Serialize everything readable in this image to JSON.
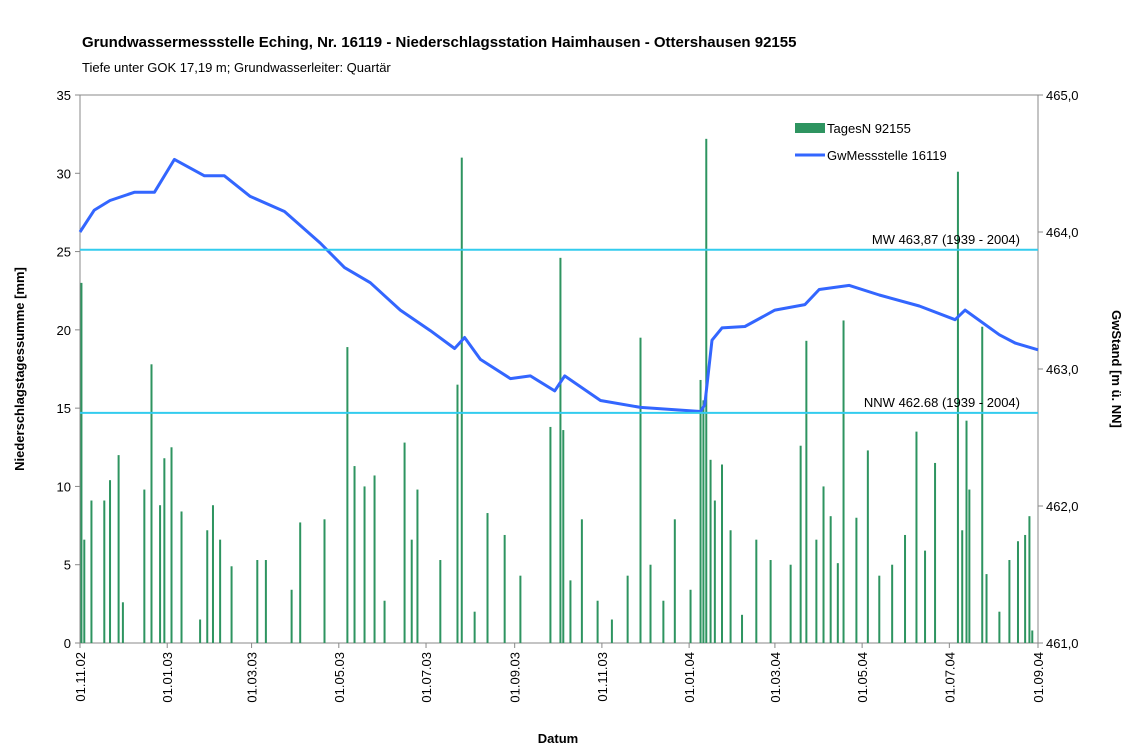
{
  "chart_data": {
    "type": "bar-line",
    "title": "Grundwassermessstelle Eching, Nr. 16119 - Niederschlagsstation Haimhausen - Ottershausen 92155",
    "subtitle": "Tiefe unter GOK 17,19 m; Grundwasserleiter: Quartär",
    "xlabel": "Datum",
    "ylabel": "Niederschlagstagessumme [mm]",
    "y2label": "GwStand [m ü. NN]",
    "xlim": [
      "01.11.02",
      "01.09.04"
    ],
    "xticks": [
      "01.11.02",
      "01.01.03",
      "01.03.03",
      "01.05.03",
      "01.07.03",
      "01.09.03",
      "01.11.03",
      "01.01.04",
      "01.03.04",
      "01.05.04",
      "01.07.04",
      "01.09.04"
    ],
    "ylim": [
      0,
      35
    ],
    "yticks": [
      0,
      5,
      10,
      15,
      20,
      25,
      30,
      35
    ],
    "y2lim": [
      461,
      465
    ],
    "y2ticks": [
      {
        "value": 461,
        "label": "461,0"
      },
      {
        "value": 462,
        "label": "462,0"
      },
      {
        "value": 463,
        "label": "463,0"
      },
      {
        "value": 464,
        "label": "464,0"
      },
      {
        "value": 465,
        "label": "465,0"
      }
    ],
    "legend": "upper right",
    "series": [
      {
        "name": "TagesN 92155",
        "type": "bar",
        "color": "#2e9460",
        "x": [
          "02.11.02",
          "04.11.02",
          "09.11.02",
          "18.11.02",
          "22.11.02",
          "28.11.02",
          "01.12.02",
          "16.12.02",
          "21.12.02",
          "27.12.02",
          "30.12.02",
          "04.01.03",
          "11.01.03",
          "24.01.03",
          "29.01.03",
          "02.02.03",
          "07.02.03",
          "15.02.03",
          "05.03.03",
          "11.03.03",
          "29.03.03",
          "04.04.03",
          "21.04.03",
          "07.05.03",
          "12.05.03",
          "19.05.03",
          "26.05.03",
          "02.06.03",
          "16.06.03",
          "21.06.03",
          "25.06.03",
          "11.07.03",
          "23.07.03",
          "26.07.03",
          "04.08.03",
          "13.08.03",
          "25.08.03",
          "05.09.03",
          "26.09.03",
          "03.10.03",
          "05.10.03",
          "10.10.03",
          "18.10.03",
          "29.10.03",
          "08.11.03",
          "19.11.03",
          "28.11.03",
          "05.12.03",
          "14.12.03",
          "22.12.03",
          "02.01.04",
          "09.01.04",
          "11.01.04",
          "13.01.04",
          "16.01.04",
          "19.01.04",
          "24.01.04",
          "30.01.04",
          "07.02.04",
          "17.02.04",
          "27.02.04",
          "12.03.04",
          "19.03.04",
          "23.03.04",
          "30.03.04",
          "04.04.04",
          "09.04.04",
          "14.04.04",
          "18.04.04",
          "27.04.04",
          "05.05.04",
          "13.05.04",
          "22.05.04",
          "31.05.04",
          "08.06.04",
          "14.06.04",
          "21.06.04",
          "07.07.04",
          "10.07.04",
          "13.07.04",
          "15.07.04",
          "24.07.04",
          "27.07.04",
          "05.08.04",
          "12.08.04",
          "18.08.04",
          "23.08.04",
          "26.08.04",
          "28.08.04"
        ],
        "values": [
          23.0,
          6.6,
          9.1,
          9.1,
          10.4,
          12.0,
          2.6,
          9.8,
          17.8,
          8.8,
          11.8,
          12.5,
          8.4,
          1.5,
          7.2,
          8.8,
          6.6,
          4.9,
          5.3,
          5.3,
          3.4,
          7.7,
          7.9,
          18.9,
          11.3,
          10.0,
          10.7,
          2.7,
          12.8,
          6.6,
          9.8,
          5.3,
          16.5,
          31.0,
          2.0,
          8.3,
          6.9,
          4.3,
          13.8,
          24.6,
          13.6,
          4.0,
          7.9,
          2.7,
          1.5,
          4.3,
          19.5,
          5.0,
          2.7,
          7.9,
          3.4,
          16.8,
          15.5,
          32.2,
          11.7,
          9.1,
          11.4,
          7.2,
          1.8,
          6.6,
          5.3,
          5.0,
          12.6,
          19.3,
          6.6,
          10.0,
          8.1,
          5.1,
          20.6,
          8.0,
          12.3,
          4.3,
          5.0,
          6.9,
          13.5,
          5.9,
          11.5,
          30.1,
          7.2,
          14.2,
          9.8,
          20.2,
          4.4,
          2.0,
          5.3,
          6.5,
          6.9,
          8.1,
          0.8
        ]
      },
      {
        "name": "GwMessstelle 16119",
        "type": "line",
        "axis": "y2",
        "color": "#3366ff",
        "x": [
          "01.11.02",
          "11.11.02",
          "22.11.02",
          "09.12.02",
          "23.12.02",
          "06.01.03",
          "27.01.03",
          "10.02.03",
          "28.02.03",
          "24.03.03",
          "18.04.03",
          "05.05.03",
          "23.05.03",
          "13.06.03",
          "04.07.03",
          "21.07.03",
          "28.07.03",
          "08.08.03",
          "29.08.03",
          "12.09.03",
          "29.09.03",
          "06.10.03",
          "31.10.03",
          "28.11.03",
          "09.01.04",
          "12.01.04",
          "17.01.04",
          "24.01.04",
          "09.02.04",
          "01.03.04",
          "22.03.04",
          "01.04.04",
          "22.04.04",
          "13.05.04",
          "10.06.04",
          "05.07.04",
          "12.07.04",
          "05.08.04",
          "16.08.04",
          "01.09.04"
        ],
        "values": [
          464.0,
          464.16,
          464.23,
          464.29,
          464.29,
          464.53,
          464.41,
          464.41,
          464.26,
          464.15,
          463.92,
          463.74,
          463.63,
          463.43,
          463.28,
          463.15,
          463.23,
          463.07,
          462.93,
          462.95,
          462.84,
          462.95,
          462.77,
          462.72,
          462.69,
          462.74,
          463.21,
          463.3,
          463.31,
          463.43,
          463.47,
          463.58,
          463.61,
          463.54,
          463.46,
          463.36,
          463.43,
          463.25,
          463.19,
          463.14
        ]
      }
    ],
    "reference_lines": [
      {
        "label": "MW 463,87 (1939 - 2004)",
        "value": 463.87,
        "axis": "y2",
        "color": "#33ccee"
      },
      {
        "label": "NNW 462.68 (1939 - 2004)",
        "value": 462.68,
        "axis": "y2",
        "color": "#33ccee"
      }
    ]
  }
}
